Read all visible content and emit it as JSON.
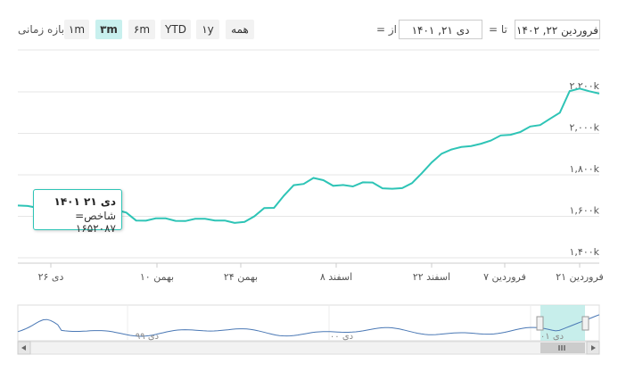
{
  "range_selector": {
    "label": "بازه زمانی",
    "buttons": [
      "۱m",
      "۳m",
      "۶m",
      "YTD",
      "۱y",
      "همه"
    ],
    "active": "۳m"
  },
  "date_range": {
    "from_label": "از =",
    "from_value": "دی ۲۱, ۱۴۰۱",
    "to_label": "تا =",
    "to_value": "فروردین ۲۲, ۱۴۰۲"
  },
  "tooltip": {
    "date": "دی ۲۱ ۱۴۰۱",
    "label": "شاخص=",
    "value": "۱۶۵۲۰۸۷"
  },
  "navigator": {
    "labels": [
      "دی ۹۹",
      "دی ۰۰",
      "دی ۰۱"
    ],
    "scroll_icon": "grip-icon"
  },
  "colors": {
    "line": "#2ec4b6",
    "navigator_line": "#4a78b5",
    "navigator_mask": "#bdebe8"
  },
  "chart_data": {
    "type": "line",
    "title": "",
    "xlabel": "",
    "ylabel": "",
    "y_ticks": [
      1400000,
      1600000,
      1800000,
      2000000,
      2200000
    ],
    "y_tick_labels": [
      "۱,۴۰۰k",
      "۱,۶۰۰k",
      "۱,۸۰۰k",
      "۲,۰۰۰k",
      "۲,۲۰۰k"
    ],
    "ylim": [
      1400000,
      2250000
    ],
    "x_ticks": [
      "دی ۲۶",
      "بهمن ۱۰",
      "بهمن ۲۴",
      "اسفند ۸",
      "اسفند ۲۲",
      "فروردین ۷",
      "فروردین ۲۱"
    ],
    "x": [
      "۱۴۰۱/۱۰/۲۱",
      "۱۴۰۱/۱۰/۲۲",
      "۱۴۰۱/۱۰/۲۵",
      "۱۴۰۱/۱۰/۲۶",
      "۱۴۰۱/۱۰/۲۷",
      "۱۴۰۱/۱۰/۲۸",
      "۱۴۰۱/۱۰/۲۹",
      "۱۴۰۱/۱۱/۰۲",
      "۱۴۰۱/۱۱/۰۳",
      "۱۴۰۱/۱۱/۰۴",
      "۱۴۰۱/۱۱/۰۵",
      "۱۴۰۱/۱۱/۰۶",
      "۱۴۰۱/۱۱/۰۹",
      "۱۴۰۱/۱۱/۱۰",
      "۱۴۰۱/۱۱/۱۱",
      "۱۴۰۱/۱۱/۱۲",
      "۱۴۰۱/۱۱/۱۳",
      "۱۴۰۱/۱۱/۱۶",
      "۱۴۰۱/۱۱/۱۷",
      "۱۴۰۱/۱۱/۱۸",
      "۱۴۰۱/۱۱/۱۹",
      "۱۴۰۱/۱۱/۲۰",
      "۱۴۰۱/۱۱/۲۳",
      "۱۴۰۱/۱۱/۲۴",
      "۱۴۰۱/۱۱/۲۵",
      "۱۴۰۱/۱۱/۲۶",
      "۱۴۰۱/۱۱/۲۷",
      "۱۴۰۱/۱۱/۳۰",
      "۱۴۰۱/۱۲/۰۱",
      "۱۴۰۱/۱۲/۰۲",
      "۱۴۰۱/۱۲/۰۳",
      "۱۴۰۱/۱۲/۰۴",
      "۱۴۰۱/۱۲/۰۷",
      "۱۴۰۱/۱۲/۰۸",
      "۱۴۰۱/۱۲/۰۹",
      "۱۴۰۱/۱۲/۱۰",
      "۱۴۰۱/۱۲/۱۱",
      "۱۴۰۱/۱۲/۱۴",
      "۱۴۰۱/۱۲/۱۵",
      "۱۴۰۱/۱۲/۱۶",
      "۱۴۰۱/۱۲/۱۷",
      "۱۴۰۱/۱۲/۱۸",
      "۱۴۰۱/۱۲/۲۱",
      "۱۴۰۱/۱۲/۲۲",
      "۱۴۰۱/۱۲/۲۳",
      "۱۴۰۱/۱۲/۲۴",
      "۱۴۰۱/۱۲/۲۵",
      "۱۴۰۲/۰۱/۰۵",
      "۱۴۰۲/۰۱/۰۶",
      "۱۴۰۲/۰۱/۰۷",
      "۱۴۰۲/۰۱/۰۸",
      "۱۴۰۲/۰۱/۰۹",
      "۱۴۰۲/۰۱/۱۴",
      "۱۴۰۲/۰۱/۱۵",
      "۱۴۰۲/۰۱/۱۶",
      "۱۴۰۲/۰۱/۱۷",
      "۱۴۰۲/۰۱/۱۹",
      "۱۴۰۲/۰۱/۲۰",
      "۱۴۰۲/۰۱/۲۱",
      "۱۴۰۲/۰۱/۲۲"
    ],
    "series": [
      {
        "values": [
          1652087,
          1650000,
          1641000,
          1633000,
          1632000,
          1628000,
          1624000,
          1630000,
          1636000,
          1646000,
          1630000,
          1618000,
          1580000,
          1579000,
          1590000,
          1590000,
          1578000,
          1577000,
          1588000,
          1588000,
          1580000,
          1580000,
          1568000,
          1573000,
          1600000,
          1640000,
          1641000,
          1700000,
          1750000,
          1756000,
          1785000,
          1774000,
          1747000,
          1751000,
          1744000,
          1764000,
          1763000,
          1735000,
          1733000,
          1736000,
          1760000,
          1808000,
          1860000,
          1902000,
          1922000,
          1934000,
          1939000,
          1950000,
          1965000,
          1990000,
          1993000,
          2007000,
          2033000,
          2040000,
          2070000,
          2100000,
          2204000,
          2216000,
          2203000,
          2192000
        ]
      }
    ],
    "grid": true,
    "legend": "none"
  }
}
